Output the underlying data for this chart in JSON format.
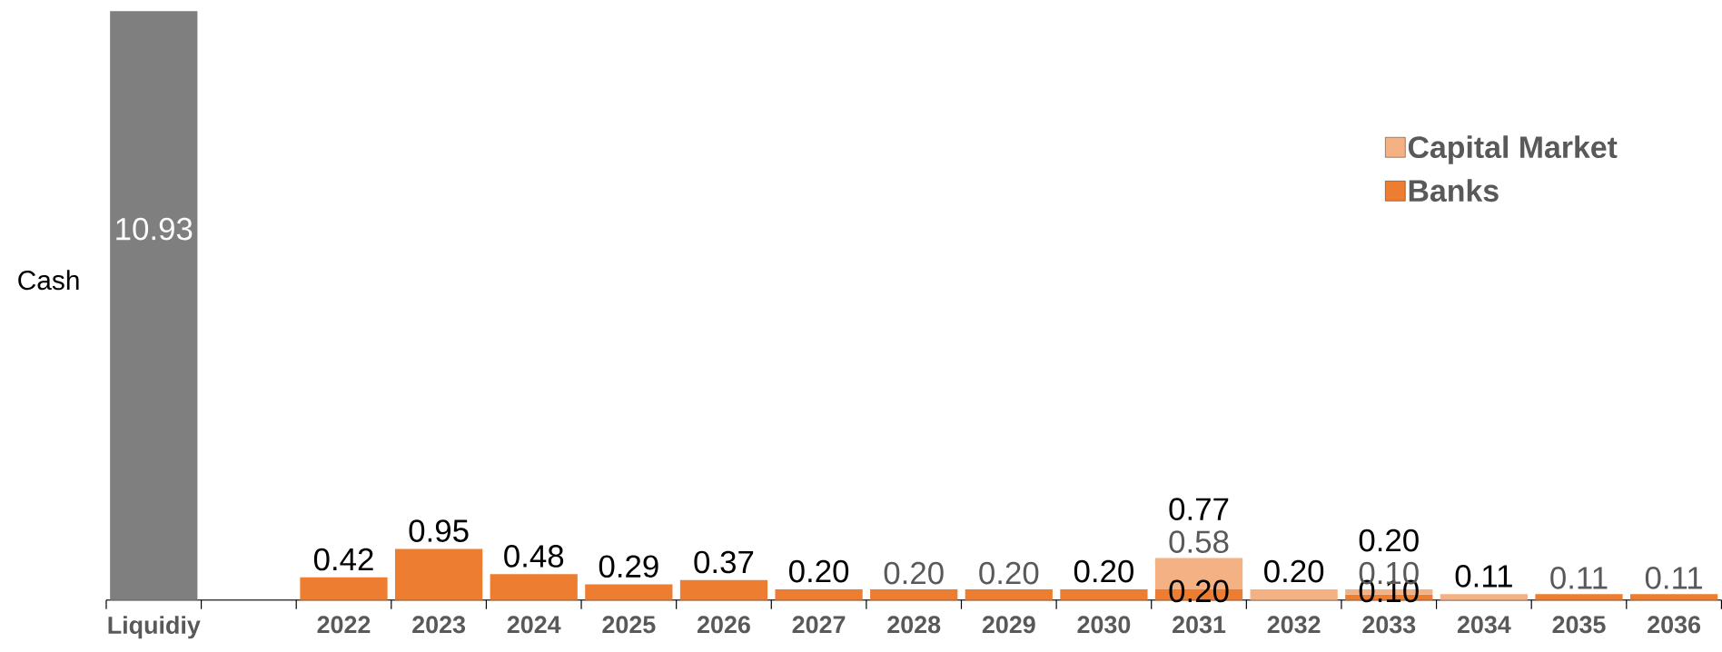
{
  "chart_data": {
    "type": "bar",
    "stacked": true,
    "categories": [
      "Liquidiy",
      null,
      "2022",
      "2023",
      "2024",
      "2025",
      "2026",
      "2027",
      "2028",
      "2029",
      "2030",
      "2031",
      "2032",
      "2033",
      "2034",
      "2035",
      "2036"
    ],
    "series": [
      {
        "name": "Cash",
        "color": "#7f7f7f",
        "values": [
          10.93,
          null,
          null,
          null,
          null,
          null,
          null,
          null,
          null,
          null,
          null,
          null,
          null,
          null,
          null,
          null,
          null
        ],
        "value_labels": [
          "10.93",
          null,
          null,
          null,
          null,
          null,
          null,
          null,
          null,
          null,
          null,
          null,
          null,
          null,
          null,
          null,
          null
        ]
      },
      {
        "name": "Banks",
        "color": "#ed7d31",
        "values": [
          null,
          null,
          0.42,
          0.95,
          0.48,
          0.29,
          0.37,
          0.2,
          0.2,
          0.2,
          0.2,
          0.2,
          null,
          0.1,
          null,
          0.11,
          0.11
        ],
        "value_labels": [
          null,
          null,
          null,
          null,
          null,
          null,
          null,
          null,
          "0.20",
          "0.20",
          null,
          "0.20",
          null,
          "0.10",
          null,
          "0.11",
          "0.11"
        ]
      },
      {
        "name": "Capital Market",
        "color": "#f4b183",
        "values": [
          null,
          null,
          null,
          null,
          null,
          null,
          null,
          null,
          null,
          null,
          null,
          0.58,
          0.2,
          0.1,
          0.11,
          null,
          null
        ],
        "value_labels": [
          null,
          null,
          null,
          null,
          null,
          null,
          null,
          null,
          null,
          null,
          null,
          "0.58",
          null,
          "0.10",
          null,
          null,
          null
        ]
      }
    ],
    "totals": [
      null,
      null,
      "0.42",
      "0.95",
      "0.48",
      "0.29",
      "0.37",
      "0.20",
      null,
      null,
      "0.20",
      "0.77",
      "0.20",
      "0.20",
      "0.11",
      null,
      null
    ],
    "ylim": [
      0,
      11
    ],
    "tick_labels": "x",
    "legend": "top right"
  }
}
